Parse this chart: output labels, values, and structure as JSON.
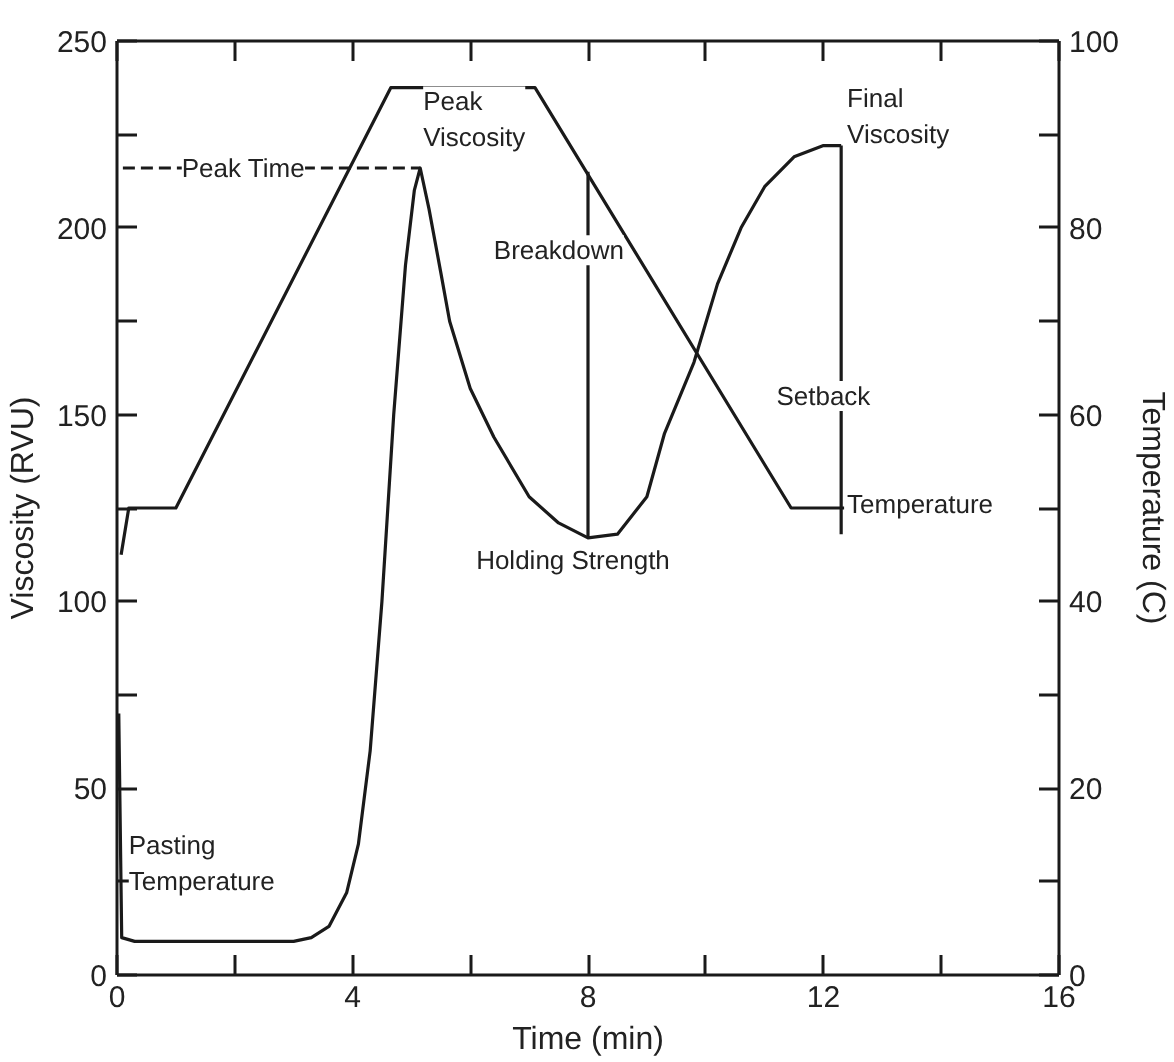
{
  "chart_data": {
    "type": "line",
    "xlabel": "Time (min)",
    "ylabel": "Viscosity (RVU)",
    "y2label": "Temperature (C)",
    "xlim": [
      0,
      16
    ],
    "xticks": [
      0,
      {
        "value": 2,
        "label": null
      },
      4,
      {
        "value": 6,
        "label": null
      },
      8,
      {
        "value": 10,
        "label": null
      },
      12,
      {
        "value": 14,
        "label": null
      },
      16
    ],
    "ylim": [
      0,
      250
    ],
    "yticks": [
      0,
      {
        "value": 25,
        "label": null
      },
      50,
      {
        "value": 75,
        "label": null
      },
      100,
      {
        "value": 125,
        "label": null
      },
      150,
      {
        "value": 175,
        "label": null
      },
      200,
      {
        "value": 225,
        "label": null
      },
      250
    ],
    "y2lim": [
      0,
      100
    ],
    "y2ticks": [
      0,
      {
        "value": 10,
        "label": null
      },
      20,
      {
        "value": 30,
        "label": null
      },
      40,
      {
        "value": 50,
        "label": null
      },
      60,
      {
        "value": 70,
        "label": null
      },
      80,
      {
        "value": 90,
        "label": null
      },
      100
    ],
    "grid": false,
    "line_style": "solid",
    "series": [
      {
        "color": "#1a1a1a",
        "x": [
          0.03,
          0.08,
          0.3,
          3.0,
          3.3,
          3.6,
          3.9,
          4.1,
          4.3,
          4.5,
          4.7,
          4.9,
          5.05,
          5.15,
          5.3,
          5.5,
          5.65,
          6.0,
          6.4,
          7.0,
          7.5,
          8.0,
          8.5,
          9.0,
          9.3,
          9.8,
          10.2,
          10.6,
          11.0,
          11.5,
          12.0,
          12.3
        ],
        "values": [
          70,
          10,
          9,
          9,
          10,
          13,
          22,
          35,
          60,
          100,
          150,
          190,
          210,
          216,
          205,
          188,
          175,
          157,
          144,
          128,
          121,
          117,
          118,
          128,
          145,
          164,
          185,
          200,
          211,
          219,
          222,
          222
        ]
      },
      {
        "color": "#1a1a1a",
        "axis": "y2",
        "x": [
          0.07,
          0.2,
          1.0,
          4.65,
          7.1,
          11.45,
          12.35
        ],
        "values": [
          45,
          50,
          50,
          95,
          95,
          50,
          50
        ]
      },
      {
        "color": "#1a1a1a",
        "line_style": "dashed",
        "x": [
          0.1,
          5.15
        ],
        "values": [
          216,
          216
        ]
      },
      {
        "color": "#1a1a1a",
        "x": [
          8,
          8
        ],
        "values": [
          117,
          215
        ]
      },
      {
        "color": "#1a1a1a",
        "x": [
          12.3,
          12.3
        ],
        "values": [
          118,
          222
        ]
      }
    ],
    "annotations": [
      {
        "text": "Peak Time",
        "x": 1.1,
        "y": 216
      },
      "Peak\nViscosity",
      "Breakdown",
      "Holding Strength",
      "Final\nViscosity",
      "Setback",
      {
        "text": "Temperature",
        "x": 12.4,
        "y": 126
      },
      {
        "text": "Pasting\nTemperature",
        "x": 0.2,
        "y": 30
      }
    ]
  }
}
